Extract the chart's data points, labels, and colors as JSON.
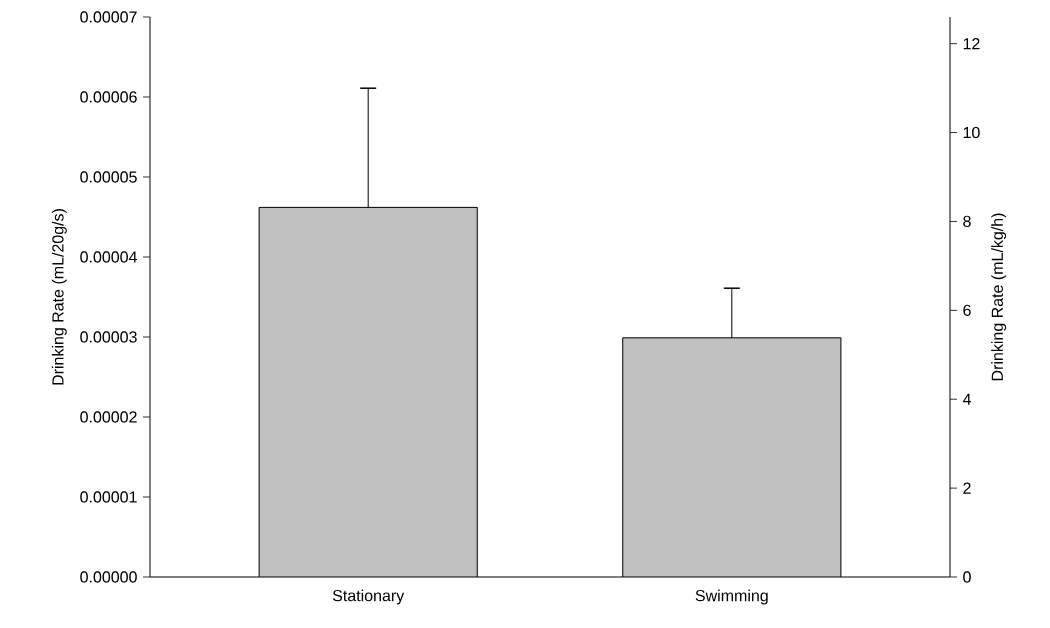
{
  "chart_data": {
    "type": "bar",
    "ylabel": "Drinking Rate (mL/20g/s)",
    "y2label": "Drinking Rate (mL/kg/h)",
    "categories": [
      "Stationary",
      "Swimming"
    ],
    "series": [
      {
        "color": "#c0c0c0",
        "values": [
          4.62e-05,
          2.99e-05
        ],
        "errors": [
          1.49e-05,
          6.2e-06
        ]
      }
    ],
    "ylim": [
      0,
      7e-05
    ],
    "yticks": [
      {
        "value": 0,
        "label": "0.00000"
      },
      {
        "value": 1e-05,
        "label": "0.00001"
      },
      {
        "value": 2e-05,
        "label": "0.00002"
      },
      {
        "value": 3e-05,
        "label": "0.00003"
      },
      {
        "value": 4e-05,
        "label": "0.00004"
      },
      {
        "value": 5e-05,
        "label": "0.00005"
      },
      {
        "value": 6e-05,
        "label": "0.00006"
      },
      {
        "value": 7e-05,
        "label": "0.00007"
      }
    ],
    "y2lim": [
      0,
      12.6
    ],
    "y2ticks": [
      0,
      2,
      4,
      6,
      8,
      10,
      12
    ],
    "grid": false
  }
}
